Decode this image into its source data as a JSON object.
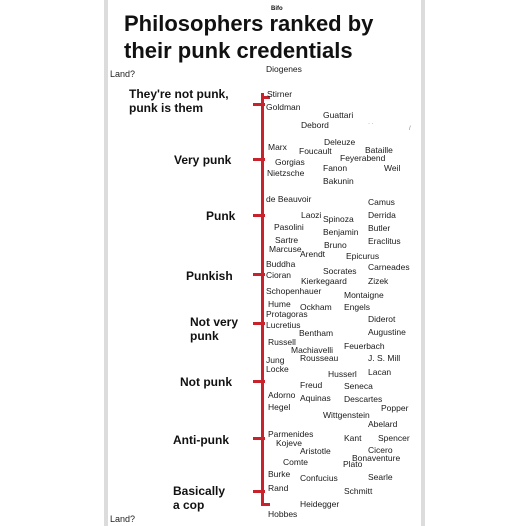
{
  "header": {
    "small_label": "Bifo"
  },
  "title": {
    "line1": "Philosophers ranked by",
    "line2": "their punk credentials"
  },
  "axis": {
    "top_label": "Land?",
    "bottom_label": "Land?",
    "color": "#c8232c"
  },
  "tiers": [
    {
      "line1": "They're not punk,",
      "line2": "punk is them"
    },
    {
      "line1": "Very punk",
      "line2": ""
    },
    {
      "line1": "Punk",
      "line2": ""
    },
    {
      "line1": "Punkish",
      "line2": ""
    },
    {
      "line1": "Not very",
      "line2": "punk"
    },
    {
      "line1": "Not punk",
      "line2": ""
    },
    {
      "line1": "Anti-punk",
      "line2": ""
    },
    {
      "line1": "Basically",
      "line2": "a cop"
    }
  ],
  "philosophers": [
    "Diogenes",
    "Stirner",
    "Goldman",
    "Guattari",
    "Debord",
    "Deleuze",
    "Marx",
    "Foucault",
    "Bataille",
    "Feyerabend",
    "Gorgias",
    "Fanon",
    "Weil",
    "Nietzsche",
    "Bakunin",
    "de Beauvoir",
    "Camus",
    "Laozi",
    "Spinoza",
    "Derrida",
    "Pasolini",
    "Benjamin",
    "Butler",
    "Sartre",
    "Bruno",
    "Eraclitus",
    "Marcuse",
    "Arendt",
    "Epicurus",
    "Buddha",
    "Socrates",
    "Carneades",
    "Cioran",
    "Kierkegaard",
    "Zizek",
    "Schopenhauer",
    "Montaigne",
    "Hume",
    "Ockham",
    "Engels",
    "Protagoras",
    "Diderot",
    "Lucretius",
    "Bentham",
    "Augustine",
    "Russell",
    "Feuerbach",
    "Machiavelli",
    "Jung",
    "Rousseau",
    "J. S. Mill",
    "Locke",
    "Husserl",
    "Lacan",
    "Freud",
    "Seneca",
    "Adorno",
    "Aquinas",
    "Descartes",
    "Hegel",
    "Popper",
    "Wittgenstein",
    "Abelard",
    "Parmenides",
    "Kant",
    "Spencer",
    "Kojeve",
    "Aristotle",
    "Cicero",
    "Bonaventure",
    "Comte",
    "Plato",
    "Burke",
    "Searle",
    "Confucius",
    "Rand",
    "Schmitt",
    "Heidegger",
    "Hobbes"
  ]
}
